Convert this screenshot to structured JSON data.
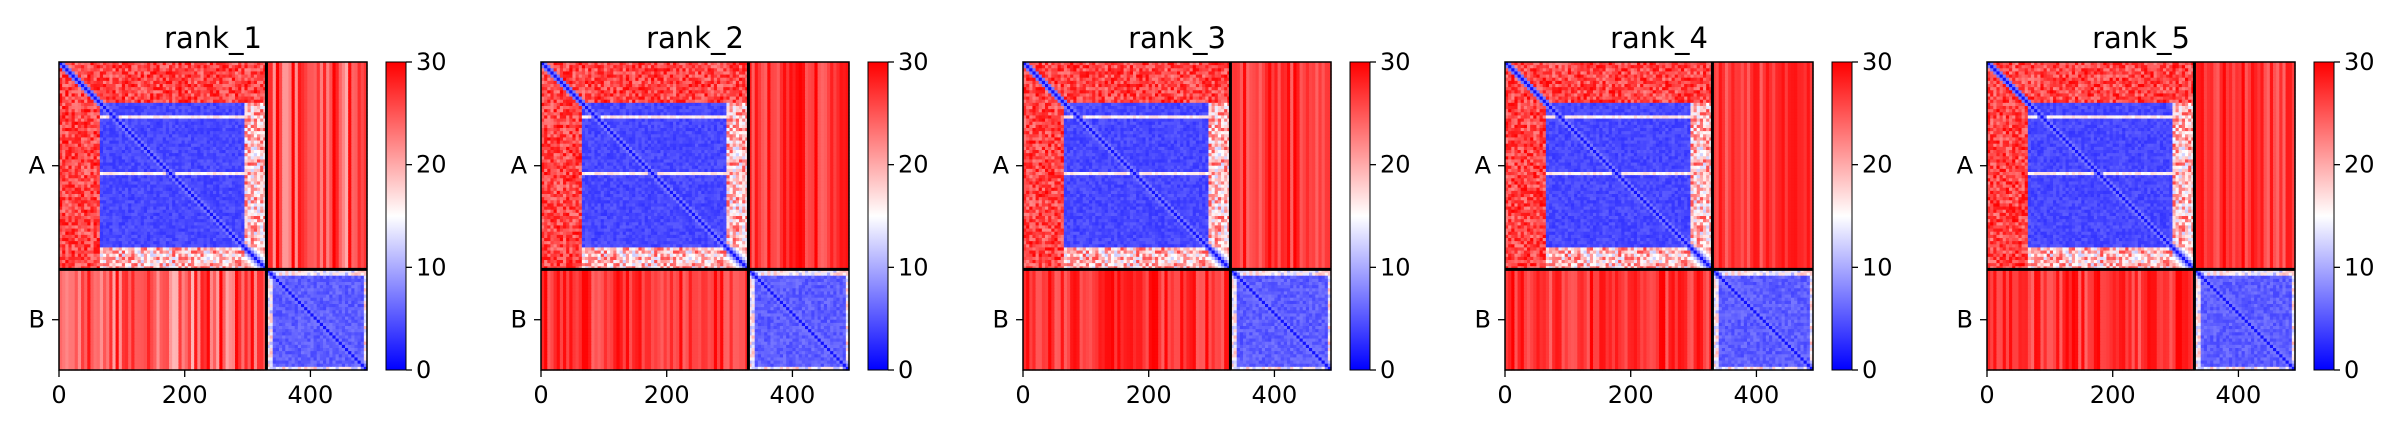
{
  "chart_data": {
    "type": "heatmap",
    "colormap": {
      "name": "bwr",
      "low": "#0000ff",
      "mid": "#ffffff",
      "high": "#ff0000"
    },
    "xlim": [
      0,
      490
    ],
    "xticks": [
      0,
      200,
      400
    ],
    "colorbar": {
      "range": [
        0,
        30
      ],
      "ticks": [
        0,
        10,
        20,
        30
      ]
    },
    "chain_boundary": 330,
    "chain_labels": [
      "A",
      "B"
    ],
    "panels": [
      {
        "title": "rank_1",
        "domain_start": 65,
        "domain_end": 295,
        "disordered_region_end": 65,
        "low_pae_block_chain_A": [
          65,
          330
        ],
        "low_pae_block_chain_B": [
          330,
          490
        ],
        "interchain_pae": "high"
      },
      {
        "title": "rank_2",
        "domain_start": 65,
        "domain_end": 295,
        "disordered_region_end": 65,
        "low_pae_block_chain_A": [
          65,
          330
        ],
        "low_pae_block_chain_B": [
          330,
          490
        ],
        "interchain_pae": "high"
      },
      {
        "title": "rank_3",
        "domain_start": 65,
        "domain_end": 295,
        "disordered_region_end": 65,
        "low_pae_block_chain_A": [
          65,
          330
        ],
        "low_pae_block_chain_B": [
          330,
          490
        ],
        "interchain_pae": "high"
      },
      {
        "title": "rank_4",
        "domain_start": 65,
        "domain_end": 295,
        "disordered_region_end": 65,
        "low_pae_block_chain_A": [
          65,
          330
        ],
        "low_pae_block_chain_B": [
          330,
          490
        ],
        "interchain_pae": "high"
      },
      {
        "title": "rank_5",
        "domain_start": 65,
        "domain_end": 295,
        "disordered_region_end": 65,
        "low_pae_block_chain_A": [
          65,
          330
        ],
        "low_pae_block_chain_B": [
          330,
          490
        ],
        "interchain_pae": "high"
      }
    ]
  }
}
